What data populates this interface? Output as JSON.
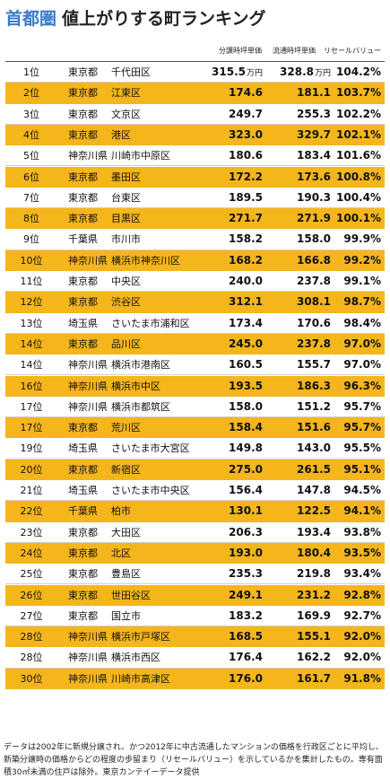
{
  "title": {
    "region": "首都圏",
    "main": "値上がりする町ランキング"
  },
  "headers": {
    "new": "分譲時坪単価",
    "used": "流通時坪単価",
    "resale": "リセールバリュー"
  },
  "unit": "万円",
  "rows": [
    {
      "rank": "1位",
      "pref": "東京都",
      "city": "千代田区",
      "new": "315.5",
      "used": "328.8",
      "resale": "104.2%"
    },
    {
      "rank": "2位",
      "pref": "東京都",
      "city": "江東区",
      "new": "174.6",
      "used": "181.1",
      "resale": "103.7%"
    },
    {
      "rank": "3位",
      "pref": "東京都",
      "city": "文京区",
      "new": "249.7",
      "used": "255.3",
      "resale": "102.2%"
    },
    {
      "rank": "4位",
      "pref": "東京都",
      "city": "港区",
      "new": "323.0",
      "used": "329.7",
      "resale": "102.1%"
    },
    {
      "rank": "5位",
      "pref": "神奈川県",
      "city": "川崎市中原区",
      "new": "180.6",
      "used": "183.4",
      "resale": "101.6%"
    },
    {
      "rank": "6位",
      "pref": "東京都",
      "city": "墨田区",
      "new": "172.2",
      "used": "173.6",
      "resale": "100.8%"
    },
    {
      "rank": "7位",
      "pref": "東京都",
      "city": "台東区",
      "new": "189.5",
      "used": "190.3",
      "resale": "100.4%"
    },
    {
      "rank": "8位",
      "pref": "東京都",
      "city": "目黒区",
      "new": "271.7",
      "used": "271.9",
      "resale": "100.1%"
    },
    {
      "rank": "9位",
      "pref": "千葉県",
      "city": "市川市",
      "new": "158.2",
      "used": "158.0",
      "resale": "99.9%"
    },
    {
      "rank": "10位",
      "pref": "神奈川県",
      "city": "横浜市神奈川区",
      "new": "168.2",
      "used": "166.8",
      "resale": "99.2%"
    },
    {
      "rank": "11位",
      "pref": "東京都",
      "city": "中央区",
      "new": "240.0",
      "used": "237.8",
      "resale": "99.1%"
    },
    {
      "rank": "12位",
      "pref": "東京都",
      "city": "渋谷区",
      "new": "312.1",
      "used": "308.1",
      "resale": "98.7%"
    },
    {
      "rank": "13位",
      "pref": "埼玉県",
      "city": "さいたま市浦和区",
      "new": "173.4",
      "used": "170.6",
      "resale": "98.4%"
    },
    {
      "rank": "14位",
      "pref": "東京都",
      "city": "品川区",
      "new": "245.0",
      "used": "237.8",
      "resale": "97.0%"
    },
    {
      "rank": "14位",
      "pref": "神奈川県",
      "city": "横浜市港南区",
      "new": "160.5",
      "used": "155.7",
      "resale": "97.0%"
    },
    {
      "rank": "16位",
      "pref": "神奈川県",
      "city": "横浜市中区",
      "new": "193.5",
      "used": "186.3",
      "resale": "96.3%"
    },
    {
      "rank": "17位",
      "pref": "神奈川県",
      "city": "横浜市都筑区",
      "new": "158.0",
      "used": "151.2",
      "resale": "95.7%"
    },
    {
      "rank": "17位",
      "pref": "東京都",
      "city": "荒川区",
      "new": "158.4",
      "used": "151.6",
      "resale": "95.7%"
    },
    {
      "rank": "19位",
      "pref": "埼玉県",
      "city": "さいたま市大宮区",
      "new": "149.8",
      "used": "143.0",
      "resale": "95.5%"
    },
    {
      "rank": "20位",
      "pref": "東京都",
      "city": "新宿区",
      "new": "275.0",
      "used": "261.5",
      "resale": "95.1%"
    },
    {
      "rank": "21位",
      "pref": "埼玉県",
      "city": "さいたま市中央区",
      "new": "156.4",
      "used": "147.8",
      "resale": "94.5%"
    },
    {
      "rank": "22位",
      "pref": "千葉県",
      "city": "柏市",
      "new": "130.1",
      "used": "122.5",
      "resale": "94.1%"
    },
    {
      "rank": "23位",
      "pref": "東京都",
      "city": "大田区",
      "new": "206.3",
      "used": "193.4",
      "resale": "93.8%"
    },
    {
      "rank": "24位",
      "pref": "東京都",
      "city": "北区",
      "new": "193.0",
      "used": "180.4",
      "resale": "93.5%"
    },
    {
      "rank": "25位",
      "pref": "東京都",
      "city": "豊島区",
      "new": "235.3",
      "used": "219.8",
      "resale": "93.4%"
    },
    {
      "rank": "26位",
      "pref": "東京都",
      "city": "世田谷区",
      "new": "249.1",
      "used": "231.2",
      "resale": "92.8%"
    },
    {
      "rank": "27位",
      "pref": "東京都",
      "city": "国立市",
      "new": "183.2",
      "used": "169.9",
      "resale": "92.7%"
    },
    {
      "rank": "28位",
      "pref": "神奈川県",
      "city": "横浜市戸塚区",
      "new": "168.5",
      "used": "155.1",
      "resale": "92.0%"
    },
    {
      "rank": "28位",
      "pref": "神奈川県",
      "city": "横浜市西区",
      "new": "176.4",
      "used": "162.2",
      "resale": "92.0%"
    },
    {
      "rank": "30位",
      "pref": "神奈川県",
      "city": "川崎市高津区",
      "new": "176.0",
      "used": "161.7",
      "resale": "91.8%"
    }
  ],
  "row_colors": {
    "odd": "#ffffff",
    "even": "#f5b61c"
  },
  "footnote": "データは2002年に新規分譲され、かつ2012年に中古流通したマンションの価格を行政区ごとに平均し、新築分譲時の価格からどの程度の歩留まり（リセールバリュー）を示しているかを集計したもの。専有面積30㎡未満の住戸は除外。東京カンテイーデータ提供"
}
